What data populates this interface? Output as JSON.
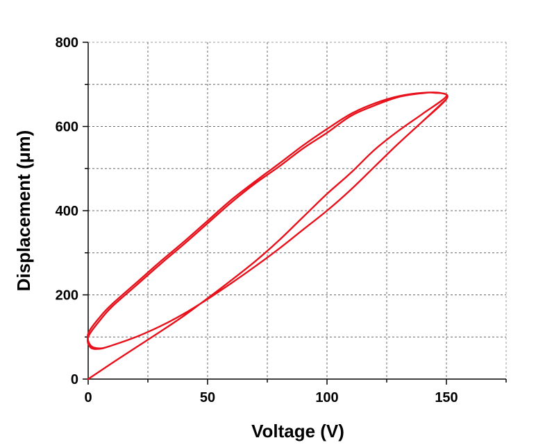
{
  "chart_data": {
    "type": "line",
    "title": "",
    "xlabel": "Voltage (V)",
    "ylabel": "Displacement (μm)",
    "xlim": [
      0,
      175
    ],
    "ylim": [
      0,
      800
    ],
    "x_ticks": [
      0,
      50,
      100,
      150
    ],
    "y_ticks": [
      0,
      200,
      400,
      600,
      800
    ],
    "x_minor_step": 25,
    "y_minor_step": 100,
    "grid": true,
    "line_color": "#e8101a",
    "series": [
      {
        "name": "",
        "points": [
          [
            0,
            0
          ],
          [
            10,
            38
          ],
          [
            20,
            75
          ],
          [
            30,
            112
          ],
          [
            40,
            150
          ],
          [
            50,
            192
          ],
          [
            60,
            235
          ],
          [
            70,
            280
          ],
          [
            80,
            330
          ],
          [
            90,
            385
          ],
          [
            100,
            440
          ],
          [
            110,
            490
          ],
          [
            120,
            545
          ],
          [
            130,
            590
          ],
          [
            140,
            630
          ],
          [
            150,
            672
          ],
          [
            145,
            680
          ],
          [
            140,
            679
          ],
          [
            130,
            670
          ],
          [
            120,
            650
          ],
          [
            110,
            625
          ],
          [
            100,
            585
          ],
          [
            90,
            548
          ],
          [
            80,
            505
          ],
          [
            70,
            465
          ],
          [
            60,
            420
          ],
          [
            50,
            370
          ],
          [
            40,
            320
          ],
          [
            30,
            272
          ],
          [
            20,
            222
          ],
          [
            10,
            172
          ],
          [
            5,
            140
          ],
          [
            0,
            100
          ],
          [
            1,
            75
          ],
          [
            5,
            72
          ],
          [
            10,
            80
          ],
          [
            20,
            100
          ],
          [
            30,
            125
          ],
          [
            40,
            155
          ],
          [
            50,
            190
          ],
          [
            60,
            228
          ],
          [
            70,
            268
          ],
          [
            80,
            310
          ],
          [
            90,
            355
          ],
          [
            100,
            400
          ],
          [
            110,
            450
          ],
          [
            120,
            505
          ],
          [
            130,
            560
          ],
          [
            140,
            612
          ],
          [
            150,
            665
          ],
          [
            148,
            679
          ],
          [
            140,
            680
          ],
          [
            130,
            672
          ],
          [
            120,
            655
          ],
          [
            110,
            630
          ],
          [
            100,
            594
          ],
          [
            90,
            555
          ],
          [
            80,
            512
          ],
          [
            70,
            470
          ],
          [
            60,
            426
          ],
          [
            50,
            376
          ],
          [
            40,
            326
          ],
          [
            30,
            278
          ],
          [
            20,
            228
          ],
          [
            10,
            178
          ],
          [
            5,
            148
          ],
          [
            0,
            108
          ],
          [
            1,
            80
          ],
          [
            5,
            73
          ],
          [
            10,
            80
          ],
          [
            20,
            100
          ],
          [
            30,
            125
          ],
          [
            40,
            155
          ],
          [
            50,
            190
          ],
          [
            60,
            228
          ],
          [
            70,
            268
          ],
          [
            80,
            310
          ],
          [
            90,
            355
          ],
          [
            100,
            400
          ],
          [
            110,
            450
          ],
          [
            120,
            505
          ],
          [
            130,
            560
          ],
          [
            140,
            612
          ],
          [
            150,
            665
          ]
        ]
      }
    ]
  }
}
